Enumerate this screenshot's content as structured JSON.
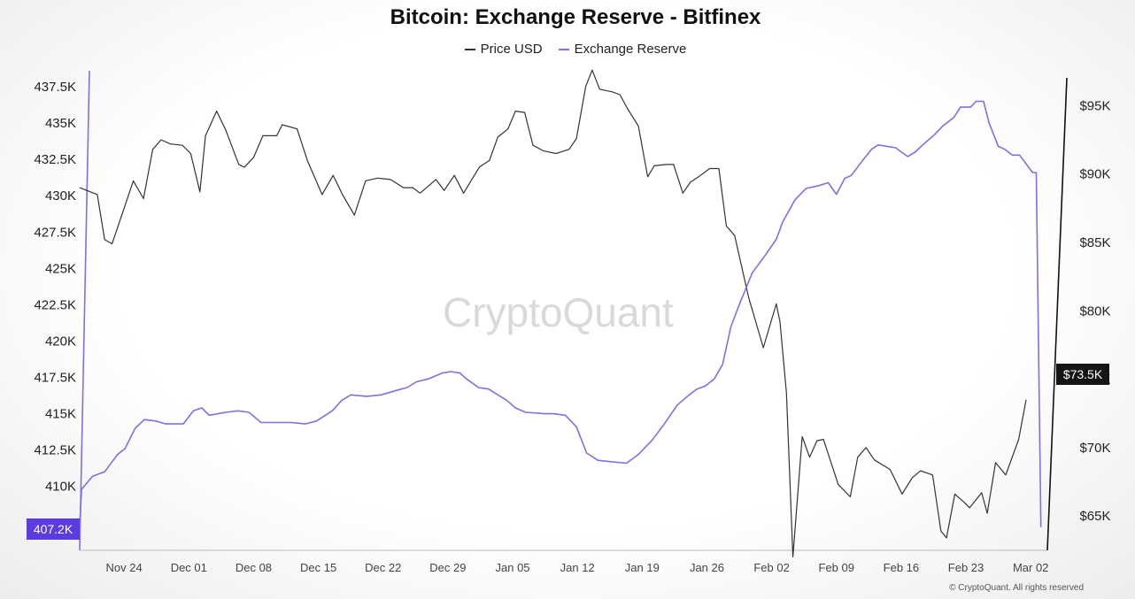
{
  "chart_data": {
    "type": "line",
    "title": "Bitcoin: Exchange Reserve - Bitfinex",
    "brand": "CryptoQuant",
    "copyright": "© CryptoQuant. All rights reserved",
    "legend": [
      "Price USD",
      "Exchange Reserve"
    ],
    "legend_position": "top-center",
    "colors": {
      "price": "#333333",
      "reserve": "#8070e0",
      "badge_reserve": "#5b3ce0",
      "badge_price": "#151515"
    },
    "x_ticks": [
      "Nov 24",
      "Dec 01",
      "Dec 08",
      "Dec 15",
      "Dec 22",
      "Dec 29",
      "Jan 05",
      "Jan 12",
      "Jan 19",
      "Jan 26",
      "Feb 02",
      "Feb 09",
      "Feb 16",
      "Feb 23",
      "Mar 02"
    ],
    "x_range_days": [
      -4.8,
      99.8
    ],
    "left_axis": {
      "series": "Exchange Reserve",
      "range": [
        405600,
        438600
      ],
      "ticks": [
        410000,
        412500,
        415000,
        417500,
        420000,
        422500,
        425000,
        427500,
        430000,
        432500,
        435000,
        437500
      ],
      "tick_labels": [
        "410K",
        "412.5K",
        "415K",
        "417.5K",
        "420K",
        "422.5K",
        "425K",
        "427.5K",
        "430K",
        "432.5K",
        "435K",
        "437.5K"
      ],
      "current_label": "407.2K"
    },
    "right_axis": {
      "series": "Price USD",
      "range": [
        61000,
        98000
      ],
      "ticks": [
        65000,
        70000,
        75000,
        80000,
        85000,
        90000,
        95000
      ],
      "tick_labels": [
        "$65K",
        "$70K",
        "$75K",
        "$80K",
        "$85K",
        "$90K",
        "$95K"
      ],
      "current_label": "$73.5K"
    },
    "series": [
      {
        "name": "Price USD",
        "axis": "right",
        "points": [
          [
            -4.8,
            89.0
          ],
          [
            -2.9,
            88.5
          ],
          [
            -2.1,
            85.2
          ],
          [
            -1.3,
            84.9
          ],
          [
            0.0,
            87.5
          ],
          [
            1.0,
            89.5
          ],
          [
            2.1,
            88.2
          ],
          [
            3.1,
            91.8
          ],
          [
            4.0,
            92.5
          ],
          [
            5.0,
            92.2
          ],
          [
            6.3,
            92.1
          ],
          [
            7.2,
            91.5
          ],
          [
            8.2,
            88.7
          ],
          [
            8.8,
            92.8
          ],
          [
            10.0,
            94.6
          ],
          [
            11.0,
            93.2
          ],
          [
            12.4,
            90.7
          ],
          [
            13.0,
            90.5
          ],
          [
            14.0,
            91.2
          ],
          [
            15.0,
            92.8
          ],
          [
            16.5,
            92.8
          ],
          [
            17.1,
            93.6
          ],
          [
            18.7,
            93.3
          ],
          [
            19.8,
            91.0
          ],
          [
            21.4,
            88.5
          ],
          [
            22.6,
            89.9
          ],
          [
            23.6,
            88.5
          ],
          [
            24.9,
            87.0
          ],
          [
            26.1,
            89.5
          ],
          [
            27.4,
            89.7
          ],
          [
            28.8,
            89.6
          ],
          [
            30.2,
            89.0
          ],
          [
            31.2,
            89.0
          ],
          [
            32.0,
            88.6
          ],
          [
            33.7,
            89.6
          ],
          [
            34.6,
            88.8
          ],
          [
            35.7,
            89.9
          ],
          [
            36.7,
            88.6
          ],
          [
            38.4,
            90.5
          ],
          [
            39.5,
            91.0
          ],
          [
            40.4,
            92.7
          ],
          [
            41.5,
            93.3
          ],
          [
            42.3,
            94.6
          ],
          [
            43.3,
            94.5
          ],
          [
            44.2,
            92.1
          ],
          [
            45.3,
            91.7
          ],
          [
            46.7,
            91.5
          ],
          [
            48.1,
            91.8
          ],
          [
            48.9,
            92.6
          ],
          [
            49.9,
            96.4
          ],
          [
            50.6,
            97.6
          ],
          [
            51.4,
            96.2
          ],
          [
            52.8,
            96.0
          ],
          [
            53.6,
            95.8
          ],
          [
            54.4,
            94.8
          ],
          [
            55.6,
            93.5
          ],
          [
            56.6,
            89.8
          ],
          [
            57.3,
            90.6
          ],
          [
            58.6,
            90.7
          ],
          [
            59.4,
            90.7
          ],
          [
            60.4,
            88.6
          ],
          [
            61.2,
            89.4
          ],
          [
            62.1,
            89.8
          ],
          [
            63.3,
            90.4
          ],
          [
            64.3,
            90.4
          ],
          [
            65.1,
            86.2
          ],
          [
            66.0,
            85.5
          ],
          [
            67.5,
            81.0
          ],
          [
            68.5,
            78.7
          ],
          [
            69.1,
            77.3
          ],
          [
            70.5,
            80.5
          ],
          [
            70.9,
            79.2
          ],
          [
            71.6,
            74.0
          ],
          [
            72.3,
            62.0
          ],
          [
            73.3,
            70.8
          ],
          [
            74.1,
            69.3
          ],
          [
            74.9,
            70.5
          ],
          [
            75.6,
            70.6
          ],
          [
            77.2,
            67.3
          ],
          [
            78.5,
            66.4
          ],
          [
            79.3,
            69.3
          ],
          [
            80.2,
            70.0
          ],
          [
            81.1,
            69.1
          ],
          [
            82.8,
            68.4
          ],
          [
            84.1,
            66.6
          ],
          [
            85.2,
            67.8
          ],
          [
            86.1,
            68.3
          ],
          [
            87.4,
            68.0
          ],
          [
            88.3,
            63.9
          ],
          [
            88.9,
            63.4
          ],
          [
            89.8,
            66.6
          ],
          [
            90.8,
            66.0
          ],
          [
            91.4,
            65.6
          ],
          [
            92.7,
            66.7
          ],
          [
            93.3,
            65.2
          ],
          [
            94.2,
            68.9
          ],
          [
            95.3,
            68.0
          ],
          [
            96.7,
            70.6
          ],
          [
            97.5,
            73.5
          ]
        ]
      },
      {
        "name": "Exchange Reserve",
        "axis": "left",
        "points": [
          [
            -4.8,
            407200
          ],
          [
            -4.6,
            409800
          ],
          [
            -3.4,
            410700
          ],
          [
            -2.1,
            411000
          ],
          [
            -0.7,
            412200
          ],
          [
            0.1,
            412600
          ],
          [
            1.2,
            414000
          ],
          [
            2.2,
            414600
          ],
          [
            3.4,
            414500
          ],
          [
            4.5,
            414300
          ],
          [
            5.7,
            414300
          ],
          [
            6.4,
            414300
          ],
          [
            7.5,
            415200
          ],
          [
            8.4,
            415400
          ],
          [
            9.2,
            414900
          ],
          [
            11.0,
            415100
          ],
          [
            12.3,
            415200
          ],
          [
            13.5,
            415100
          ],
          [
            14.8,
            414400
          ],
          [
            16.4,
            414400
          ],
          [
            18.0,
            414400
          ],
          [
            19.6,
            414300
          ],
          [
            20.8,
            414500
          ],
          [
            22.5,
            415200
          ],
          [
            23.5,
            415900
          ],
          [
            24.5,
            416300
          ],
          [
            26.2,
            416200
          ],
          [
            27.8,
            416300
          ],
          [
            29.4,
            416600
          ],
          [
            30.6,
            416800
          ],
          [
            31.6,
            417200
          ],
          [
            32.9,
            417400
          ],
          [
            34.4,
            417800
          ],
          [
            35.3,
            417900
          ],
          [
            36.3,
            417800
          ],
          [
            37.0,
            417400
          ],
          [
            38.3,
            416800
          ],
          [
            39.4,
            416700
          ],
          [
            41.4,
            415900
          ],
          [
            42.3,
            415400
          ],
          [
            43.4,
            415100
          ],
          [
            45.5,
            415000
          ],
          [
            46.4,
            415000
          ],
          [
            47.7,
            414900
          ],
          [
            48.9,
            414100
          ],
          [
            50.0,
            412300
          ],
          [
            51.2,
            411800
          ],
          [
            52.6,
            411700
          ],
          [
            54.3,
            411600
          ],
          [
            55.6,
            412200
          ],
          [
            57.1,
            413200
          ],
          [
            58.4,
            414300
          ],
          [
            59.8,
            415600
          ],
          [
            60.9,
            416200
          ],
          [
            61.9,
            416700
          ],
          [
            62.8,
            416900
          ],
          [
            63.8,
            417400
          ],
          [
            64.7,
            418400
          ],
          [
            65.6,
            421000
          ],
          [
            66.5,
            422500
          ],
          [
            67.9,
            424700
          ],
          [
            69.3,
            425900
          ],
          [
            70.5,
            427000
          ],
          [
            71.2,
            428200
          ],
          [
            72.5,
            429700
          ],
          [
            73.7,
            430500
          ],
          [
            75.1,
            430700
          ],
          [
            76.1,
            430900
          ],
          [
            77.0,
            430100
          ],
          [
            77.9,
            431200
          ],
          [
            78.6,
            431400
          ],
          [
            79.8,
            432400
          ],
          [
            80.8,
            433200
          ],
          [
            81.5,
            433500
          ],
          [
            83.4,
            433300
          ],
          [
            84.7,
            432700
          ],
          [
            85.5,
            433000
          ],
          [
            86.5,
            433600
          ],
          [
            87.6,
            434200
          ],
          [
            88.5,
            434800
          ],
          [
            89.7,
            435400
          ],
          [
            90.4,
            436100
          ],
          [
            91.5,
            436100
          ],
          [
            92.1,
            436500
          ],
          [
            92.9,
            436500
          ],
          [
            93.5,
            435000
          ],
          [
            94.5,
            433400
          ],
          [
            95.2,
            433200
          ],
          [
            96.0,
            432800
          ],
          [
            96.8,
            432800
          ],
          [
            98.2,
            431600
          ],
          [
            98.6,
            431600
          ],
          [
            99.1,
            407200
          ]
        ]
      }
    ]
  }
}
